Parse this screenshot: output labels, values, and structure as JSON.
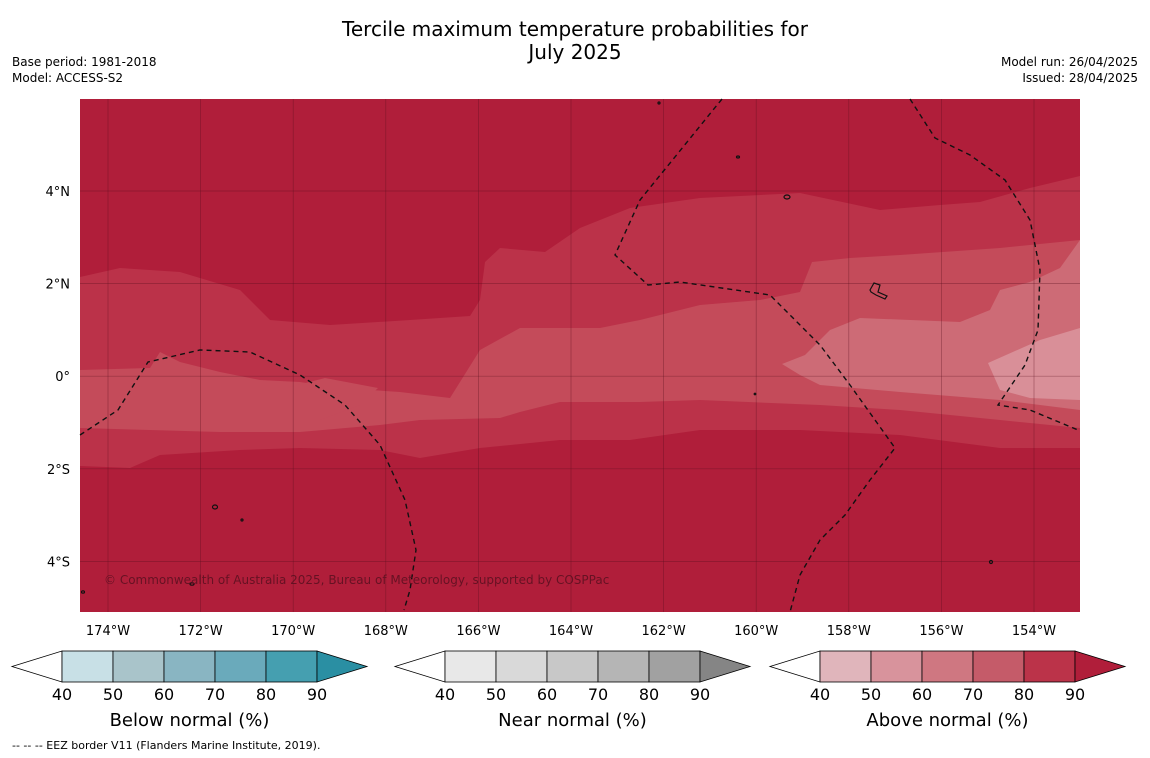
{
  "header": {
    "title_line1": "Tercile maximum temperature probabilities for",
    "title_line2": "July 2025",
    "base_period": "Base period: 1981-2018",
    "model": "Model: ACCESS-S2",
    "model_run": "Model run: 26/04/2025",
    "issued": "Issued: 28/04/2025"
  },
  "map": {
    "lon_ticks": [
      "174°W",
      "172°W",
      "170°W",
      "168°W",
      "166°W",
      "164°W",
      "162°W",
      "160°W",
      "158°W",
      "156°W",
      "154°W"
    ],
    "lat_ticks": [
      "4°N",
      "2°N",
      "0°",
      "2°S",
      "4°S"
    ],
    "credit": "© Commonwealth of Australia 2025, Bureau of Meteorology, supported by COSPPac",
    "colors": {
      "above_90": "#b01e3a",
      "above_80": "#bb3249",
      "above_70": "#c44b5a",
      "above_60": "#cd6b76",
      "above_50": "#d98f98"
    }
  },
  "colorbars": [
    {
      "title": "Below normal (%)",
      "labels": [
        "40",
        "50",
        "60",
        "70",
        "80",
        "90"
      ],
      "colors": [
        "#c8e0e6",
        "#a9c4ca",
        "#89b5c2",
        "#6aaabb",
        "#459fb0",
        "#2a8fa3"
      ]
    },
    {
      "title": "Near normal (%)",
      "labels": [
        "40",
        "50",
        "60",
        "70",
        "80",
        "90"
      ],
      "colors": [
        "#e8e8e8",
        "#d9d9d9",
        "#c8c8c8",
        "#b5b5b5",
        "#a1a1a1",
        "#858585"
      ]
    },
    {
      "title": "Above normal (%)",
      "labels": [
        "40",
        "50",
        "60",
        "70",
        "80",
        "90"
      ],
      "colors": [
        "#e0b5bb",
        "#d8939c",
        "#cf7781",
        "#c55b69",
        "#bb3349",
        "#b01e3a"
      ]
    }
  ],
  "footnote": "--  --  -- EEZ border V11 (Flanders Marine Institute, 2019)."
}
